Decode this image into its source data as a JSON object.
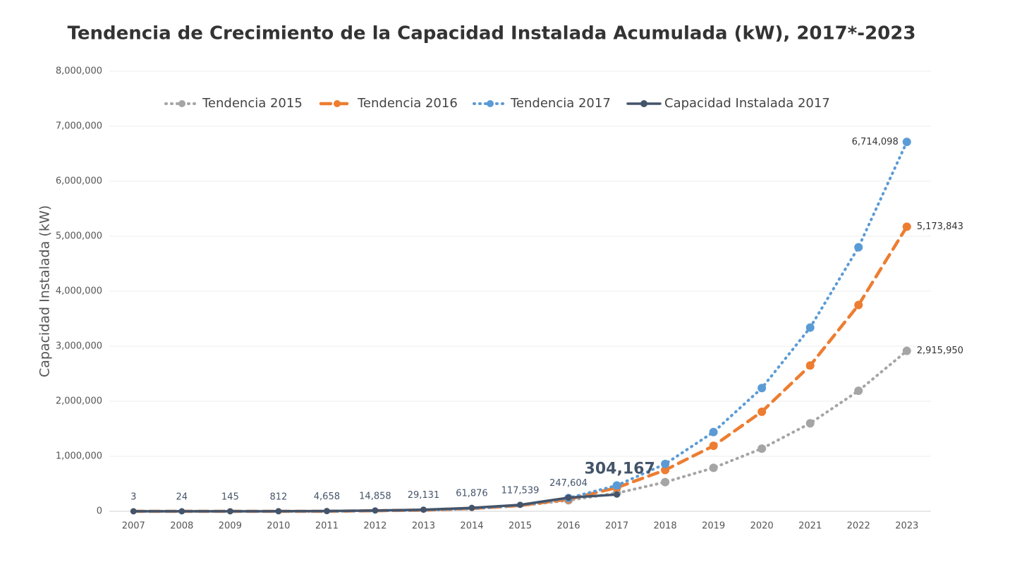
{
  "chart_data": {
    "type": "line",
    "title": "Tendencia de Crecimiento de la Capacidad Instalada Acumulada (kW), 2017*-2023",
    "y_label": "Capacidad Instalada (kW)",
    "categories": [
      "2007",
      "2008",
      "2009",
      "2010",
      "2011",
      "2012",
      "2013",
      "2014",
      "2015",
      "2016",
      "2017",
      "2018",
      "2019",
      "2020",
      "2021",
      "2022",
      "2023"
    ],
    "ylim": [
      0,
      8000000
    ],
    "yticks": [
      0,
      {
        "value": 1000000,
        "label": "1,000,000"
      },
      {
        "value": 2000000,
        "label": "2,000,000"
      },
      {
        "value": 3000000,
        "label": "3,000,000"
      },
      {
        "value": 4000000,
        "label": "4,000,000"
      },
      {
        "value": 5000000,
        "label": "5,000,000"
      },
      {
        "value": 6000000,
        "label": "6,000,000"
      },
      {
        "value": 7000000,
        "label": "7,000,000"
      },
      {
        "value": 8000000,
        "label": "8,000,000"
      }
    ],
    "grid": true,
    "legend": "top",
    "series": [
      {
        "name": "Tendencia 2015",
        "color": "#a5a5a5",
        "style": "dotted",
        "values": [
          0,
          0,
          0,
          0,
          0,
          10000,
          20000,
          45000,
          100000,
          200000,
          330000,
          530000,
          790000,
          1140000,
          1600000,
          2190000,
          2915950
        ],
        "value_labels": [
          null,
          null,
          null,
          null,
          null,
          null,
          null,
          null,
          null,
          null,
          null,
          null,
          null,
          null,
          null,
          null,
          "2,915,950"
        ]
      },
      {
        "name": "Tendencia 2016",
        "color": "#ed7d31",
        "style": "dashed",
        "values": [
          0,
          0,
          0,
          0,
          0,
          10000,
          20000,
          50000,
          105000,
          220000,
          430000,
          750000,
          1190000,
          1810000,
          2650000,
          3750000,
          5173843
        ],
        "value_labels": [
          null,
          null,
          null,
          null,
          null,
          null,
          null,
          null,
          null,
          null,
          null,
          null,
          null,
          null,
          null,
          null,
          "5,173,843"
        ]
      },
      {
        "name": "Tendencia 2017",
        "color": "#5b9bd5",
        "style": "dotted",
        "values": [
          0,
          0,
          0,
          0,
          0,
          10000,
          20000,
          50000,
          110000,
          240000,
          470000,
          860000,
          1440000,
          2240000,
          3340000,
          4800000,
          6714098
        ],
        "value_labels": [
          null,
          null,
          null,
          null,
          null,
          null,
          null,
          null,
          null,
          null,
          null,
          null,
          null,
          null,
          null,
          null,
          "6,714,098"
        ]
      },
      {
        "name": "Capacidad Instalada 2017",
        "color": "#44546a",
        "style": "solid",
        "values": [
          3,
          24,
          145,
          812,
          4658,
          14858,
          29131,
          61876,
          117539,
          247604,
          304167,
          null,
          null,
          null,
          null,
          null,
          null
        ],
        "value_labels": [
          "3",
          "24",
          "145",
          "812",
          "4,658",
          "14,858",
          "29,131",
          "61,876",
          "117,539",
          "247,604",
          "304,167",
          null,
          null,
          null,
          null,
          null,
          null
        ]
      }
    ]
  }
}
